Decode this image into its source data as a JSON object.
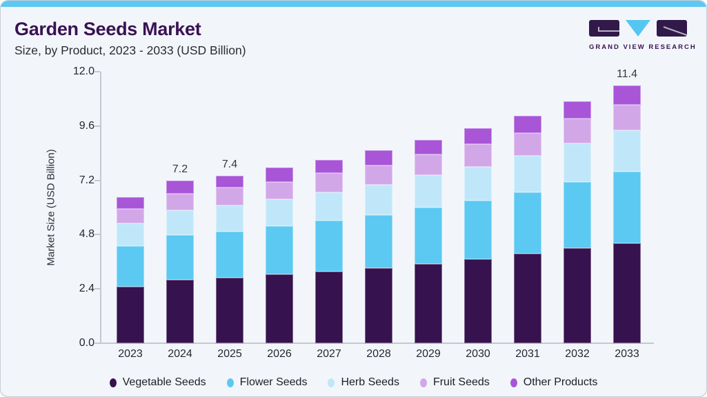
{
  "card": {
    "background": "#f2f6fa",
    "accent_bar_color": "#5dc8f1",
    "border_color": "#c9ced6"
  },
  "header": {
    "title": "Garden Seeds Market",
    "subtitle": "Size, by Product, 2023 - 2033 (USD Billion)"
  },
  "logo": {
    "text": "GRAND VIEW RESEARCH",
    "mark_purple": "#31194a",
    "mark_blue": "#55c6f0"
  },
  "chart_data": {
    "type": "bar",
    "stacked": true,
    "title": "Garden Seeds Market",
    "subtitle": "Size, by Product, 2023 - 2033 (USD Billion)",
    "xlabel": "",
    "ylabel": "Market Size (USD Billion)",
    "ylim": [
      0,
      12
    ],
    "ytick_labels": [
      "0.0",
      "2.4",
      "4.8",
      "7.2",
      "9.6",
      "12.0"
    ],
    "ytick_values": [
      0,
      2.4,
      4.8,
      7.2,
      9.6,
      12
    ],
    "grid": false,
    "legend_position": "bottom",
    "categories": [
      "2023",
      "2024",
      "2025",
      "2026",
      "2027",
      "2028",
      "2029",
      "2030",
      "2031",
      "2032",
      "2033"
    ],
    "bar_value_labels": [
      "",
      "7.2",
      "7.4",
      "",
      "",
      "",
      "",
      "",
      "",
      "",
      "11.4"
    ],
    "series": [
      {
        "name": "Vegetable Seeds",
        "color": "#36124e",
        "values": [
          2.5,
          2.8,
          2.9,
          3.04,
          3.16,
          3.31,
          3.51,
          3.72,
          3.95,
          4.19,
          4.43
        ]
      },
      {
        "name": "Flower Seeds",
        "color": "#5bc9f2",
        "values": [
          1.8,
          1.97,
          2.03,
          2.13,
          2.26,
          2.36,
          2.49,
          2.59,
          2.71,
          2.95,
          3.15
        ]
      },
      {
        "name": "Herb Seeds",
        "color": "#c0e7f9",
        "values": [
          1.0,
          1.1,
          1.15,
          1.19,
          1.24,
          1.35,
          1.42,
          1.5,
          1.63,
          1.68,
          1.84
        ]
      },
      {
        "name": "Fruit Seeds",
        "color": "#d2a7e8",
        "values": [
          0.64,
          0.74,
          0.8,
          0.76,
          0.86,
          0.84,
          0.92,
          0.99,
          1.01,
          1.11,
          1.13
        ]
      },
      {
        "name": "Other Products",
        "color": "#a855d8",
        "values": [
          0.52,
          0.59,
          0.52,
          0.65,
          0.57,
          0.67,
          0.65,
          0.69,
          0.74,
          0.76,
          0.85
        ]
      }
    ],
    "totals": [
      6.46,
      7.2,
      7.4,
      7.77,
      8.09,
      8.53,
      8.99,
      9.49,
      10.04,
      10.69,
      11.4
    ]
  }
}
